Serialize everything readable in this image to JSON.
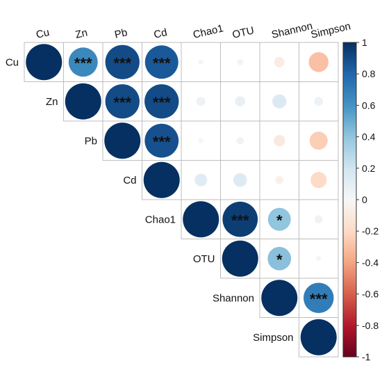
{
  "chart_data": {
    "type": "heatmap",
    "subtype": "correlation-upper-triangle-circles",
    "variables": [
      "Cu",
      "Zn",
      "Pb",
      "Cd",
      "Chao1",
      "OTU",
      "Shannon",
      "Simpson"
    ],
    "correlations": [
      [
        1.0,
        0.65,
        0.9,
        0.85,
        0.02,
        0.03,
        -0.08,
        -0.3
      ],
      [
        null,
        1.0,
        0.9,
        0.9,
        0.06,
        0.08,
        0.15,
        0.06
      ],
      [
        null,
        null,
        1.0,
        0.88,
        0.02,
        0.04,
        -0.1,
        -0.25
      ],
      [
        null,
        null,
        null,
        1.0,
        0.12,
        0.14,
        -0.05,
        -0.2
      ],
      [
        null,
        null,
        null,
        null,
        1.0,
        0.95,
        0.4,
        0.05
      ],
      [
        null,
        null,
        null,
        null,
        null,
        1.0,
        0.42,
        0.02
      ],
      [
        null,
        null,
        null,
        null,
        null,
        null,
        1.0,
        0.7
      ],
      [
        null,
        null,
        null,
        null,
        null,
        null,
        null,
        1.0
      ]
    ],
    "significance": [
      [
        "",
        "***",
        "***",
        "***",
        "",
        "",
        "",
        ""
      ],
      [
        "",
        "",
        "***",
        "***",
        "",
        "",
        "",
        ""
      ],
      [
        "",
        "",
        "",
        "***",
        "",
        "",
        "",
        ""
      ],
      [
        "",
        "",
        "",
        "",
        "",
        "",
        "",
        ""
      ],
      [
        "",
        "",
        "",
        "",
        "",
        "***",
        "*",
        ""
      ],
      [
        "",
        "",
        "",
        "",
        "",
        "",
        "*",
        ""
      ],
      [
        "",
        "",
        "",
        "",
        "",
        "",
        "",
        "***"
      ],
      [
        "",
        "",
        "",
        "",
        "",
        "",
        "",
        ""
      ]
    ],
    "colorbar": {
      "min": -1,
      "max": 1,
      "ticks": [
        "1",
        "0.8",
        "0.6",
        "0.4",
        "0.2",
        "0",
        "-0.2",
        "-0.4",
        "-0.6",
        "-0.8",
        "-1"
      ],
      "colors": {
        "neg_strong": "#67001f",
        "neg_mid": "#d6604d",
        "neutral": "#f7f7f7",
        "pos_mid": "#4393c3",
        "pos_strong": "#053061"
      }
    },
    "grid": true,
    "legend": "right"
  }
}
